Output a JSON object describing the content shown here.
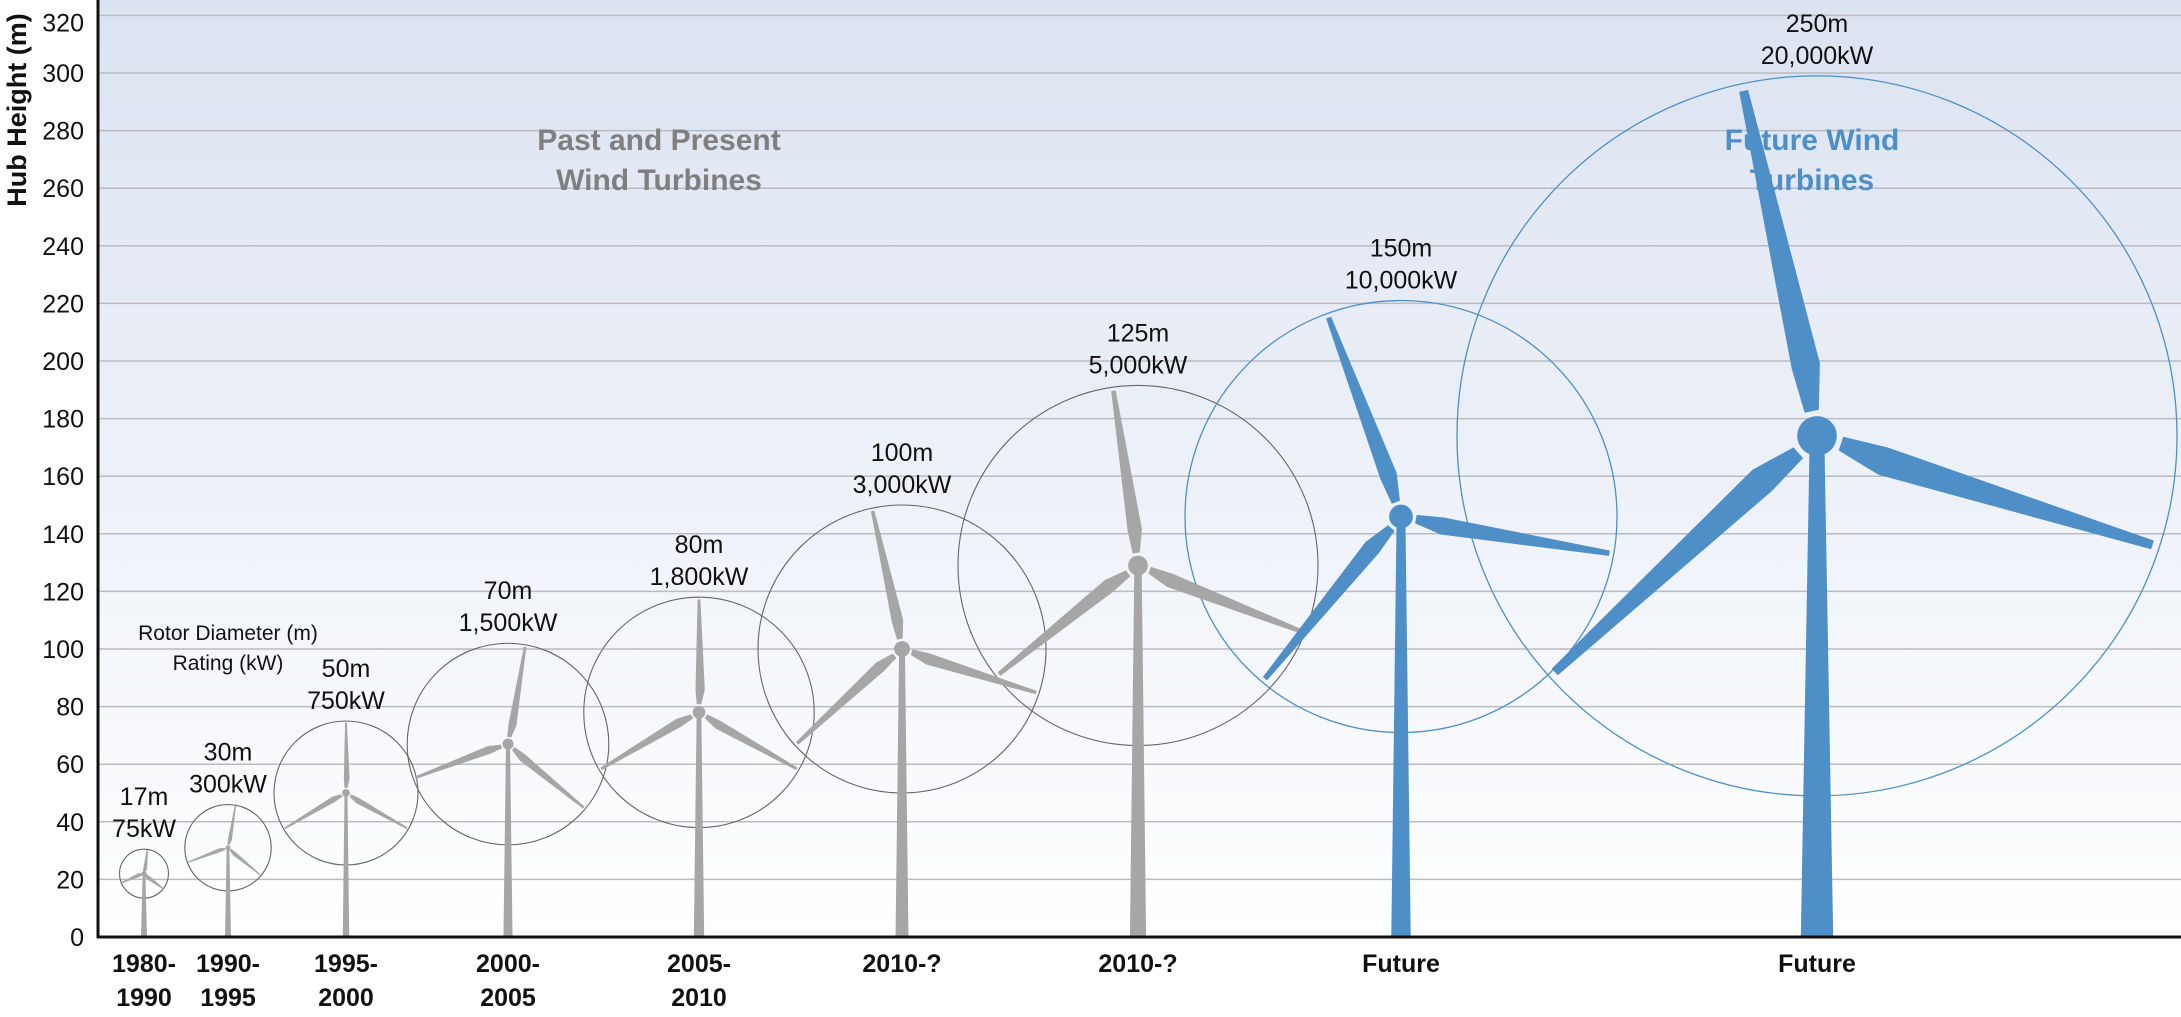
{
  "chart_data": {
    "type": "scatter",
    "ylabel": "Hub Height (m)",
    "ylim": [
      0,
      320
    ],
    "yticks": [
      0,
      20,
      40,
      60,
      80,
      100,
      120,
      140,
      160,
      180,
      200,
      220,
      240,
      260,
      280,
      300,
      320
    ],
    "grid": true,
    "section_labels": {
      "past": [
        "Past and Present",
        "Wind Turbines"
      ],
      "future": [
        "Future Wind",
        "Turbines"
      ]
    },
    "annotation": [
      "Rotor Diameter (m)",
      "Rating (kW)"
    ],
    "colors": {
      "past": "#a6a6a6",
      "future": "#4f8fc8",
      "past_label": "#7f7f7f",
      "future_label": "#4f8fc8"
    },
    "turbines": [
      {
        "era": [
          "1980-",
          "1990"
        ],
        "diameter_label": "17m",
        "rating_label": "75kW",
        "rotor_diameter_m": 17,
        "rating_kw": 75,
        "hub_height_m": 22,
        "group": "past"
      },
      {
        "era": [
          "1990-",
          "1995"
        ],
        "diameter_label": "30m",
        "rating_label": "300kW",
        "rotor_diameter_m": 30,
        "rating_kw": 300,
        "hub_height_m": 31,
        "group": "past"
      },
      {
        "era": [
          "1995-",
          "2000"
        ],
        "diameter_label": "50m",
        "rating_label": "750kW",
        "rotor_diameter_m": 50,
        "rating_kw": 750,
        "hub_height_m": 50,
        "group": "past"
      },
      {
        "era": [
          "2000-",
          "2005"
        ],
        "diameter_label": "70m",
        "rating_label": "1,500kW",
        "rotor_diameter_m": 70,
        "rating_kw": 1500,
        "hub_height_m": 67,
        "group": "past"
      },
      {
        "era": [
          "2005-",
          "2010"
        ],
        "diameter_label": "80m",
        "rating_label": "1,800kW",
        "rotor_diameter_m": 80,
        "rating_kw": 1800,
        "hub_height_m": 78,
        "group": "past"
      },
      {
        "era": [
          "2010-?"
        ],
        "diameter_label": "100m",
        "rating_label": "3,000kW",
        "rotor_diameter_m": 100,
        "rating_kw": 3000,
        "hub_height_m": 100,
        "group": "past"
      },
      {
        "era": [
          "2010-?"
        ],
        "diameter_label": "125m",
        "rating_label": "5,000kW",
        "rotor_diameter_m": 125,
        "rating_kw": 5000,
        "hub_height_m": 129,
        "group": "past"
      },
      {
        "era": [
          "Future"
        ],
        "diameter_label": "150m",
        "rating_label": "10,000kW",
        "rotor_diameter_m": 150,
        "rating_kw": 10000,
        "hub_height_m": 146,
        "group": "future"
      },
      {
        "era": [
          "Future"
        ],
        "diameter_label": "250m",
        "rating_label": "20,000kW",
        "rotor_diameter_m": 250,
        "rating_kw": 20000,
        "hub_height_m": 174,
        "group": "future"
      }
    ]
  }
}
